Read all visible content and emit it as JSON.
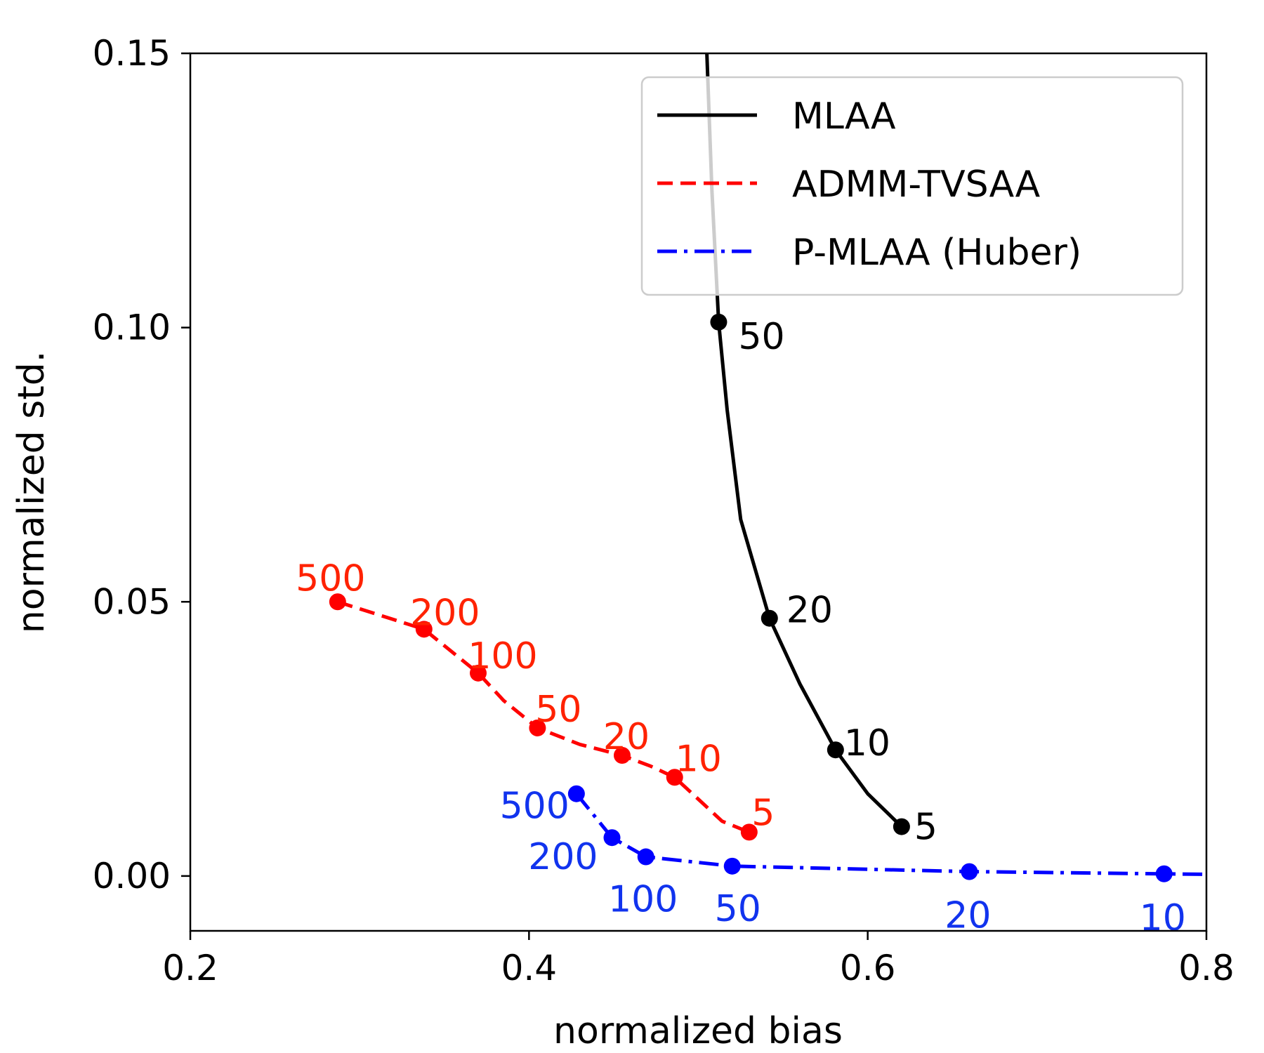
{
  "chart_data": {
    "type": "line",
    "xlabel": "normalized bias",
    "ylabel": "normalized std.",
    "xlim": [
      0.2,
      0.8
    ],
    "ylim": [
      -0.01,
      0.15
    ],
    "xticks": [
      "0.2",
      "0.4",
      "0.6",
      "0.8"
    ],
    "yticks": [
      "0.00",
      "0.05",
      "0.10",
      "0.15"
    ],
    "legend_position": "top-right",
    "series": [
      {
        "name": "MLAA",
        "color": "#000000",
        "style": "solid",
        "curve": [
          [
            0.505,
            0.15
          ],
          [
            0.508,
            0.125
          ],
          [
            0.512,
            0.101
          ],
          [
            0.517,
            0.085
          ],
          [
            0.525,
            0.065
          ],
          [
            0.542,
            0.047
          ],
          [
            0.56,
            0.035
          ],
          [
            0.581,
            0.023
          ],
          [
            0.6,
            0.015
          ],
          [
            0.62,
            0.009
          ]
        ],
        "points": [
          {
            "x": 0.512,
            "y": 0.101,
            "label": "50"
          },
          {
            "x": 0.542,
            "y": 0.047,
            "label": "20"
          },
          {
            "x": 0.581,
            "y": 0.023,
            "label": "10"
          },
          {
            "x": 0.62,
            "y": 0.009,
            "label": "5"
          }
        ]
      },
      {
        "name": "ADMM-TVSAA",
        "color": "#ff0000",
        "style": "dashed",
        "curve": [
          [
            0.287,
            0.05
          ],
          [
            0.338,
            0.045
          ],
          [
            0.37,
            0.037
          ],
          [
            0.385,
            0.032
          ],
          [
            0.405,
            0.027
          ],
          [
            0.43,
            0.024
          ],
          [
            0.455,
            0.022
          ],
          [
            0.472,
            0.02
          ],
          [
            0.486,
            0.018
          ],
          [
            0.5,
            0.014
          ],
          [
            0.514,
            0.01
          ],
          [
            0.53,
            0.008
          ]
        ],
        "points": [
          {
            "x": 0.287,
            "y": 0.05,
            "label": "500"
          },
          {
            "x": 0.338,
            "y": 0.045,
            "label": "200"
          },
          {
            "x": 0.37,
            "y": 0.037,
            "label": "100"
          },
          {
            "x": 0.405,
            "y": 0.027,
            "label": "50"
          },
          {
            "x": 0.455,
            "y": 0.022,
            "label": "20"
          },
          {
            "x": 0.486,
            "y": 0.018,
            "label": "10"
          },
          {
            "x": 0.53,
            "y": 0.008,
            "label": "5"
          }
        ]
      },
      {
        "name": "P-MLAA (Huber)",
        "color": "#0000ff",
        "style": "dashdot",
        "curve": [
          [
            0.428,
            0.015
          ],
          [
            0.449,
            0.007
          ],
          [
            0.469,
            0.0035
          ],
          [
            0.52,
            0.0018
          ],
          [
            0.66,
            0.0008
          ],
          [
            0.775,
            0.0004
          ],
          [
            0.8,
            0.0003
          ]
        ],
        "points": [
          {
            "x": 0.428,
            "y": 0.015,
            "label": "500"
          },
          {
            "x": 0.449,
            "y": 0.007,
            "label": "200"
          },
          {
            "x": 0.469,
            "y": 0.0035,
            "label": "100"
          },
          {
            "x": 0.52,
            "y": 0.0018,
            "label": "50"
          },
          {
            "x": 0.66,
            "y": 0.0008,
            "label": "20"
          },
          {
            "x": 0.775,
            "y": 0.0004,
            "label": "10"
          }
        ]
      }
    ]
  }
}
